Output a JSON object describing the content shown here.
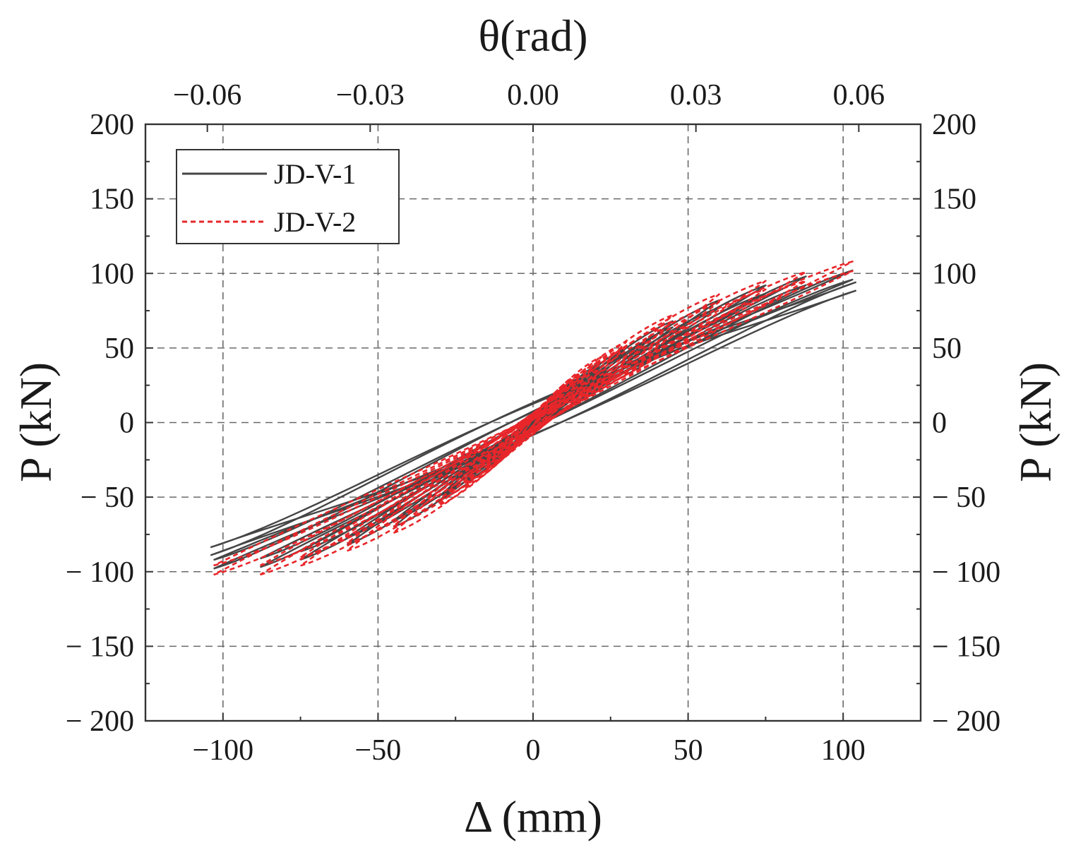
{
  "chart_data": {
    "type": "line",
    "xlabel": "Δ (mm)",
    "ylabel_left": "P (kN)",
    "ylabel_right": "P (kN)",
    "x2label": "θ(rad)",
    "xlim": [
      -125,
      125
    ],
    "ylim": [
      -200,
      200
    ],
    "x2lim": [
      -0.0714,
      0.0714
    ],
    "x_ticks": [
      -100,
      -50,
      0,
      50,
      100
    ],
    "x_tick_labels": [
      "−100",
      "−50",
      "0",
      "50",
      "100"
    ],
    "x2_ticks": [
      -0.06,
      -0.03,
      0.0,
      0.03,
      0.06
    ],
    "x2_tick_labels": [
      "−0.06",
      "−0.03",
      "0.00",
      "0.03",
      "0.06"
    ],
    "y_ticks": [
      200,
      150,
      100,
      50,
      0,
      -50,
      -100,
      -150,
      -200
    ],
    "y_tick_labels_left": [
      "200",
      "150",
      "100",
      "50",
      "0",
      "− 50",
      "− 100",
      "− 150",
      "− 200"
    ],
    "y_tick_labels_right": [
      "200",
      "150",
      "100",
      "50",
      "0",
      "− 50",
      "− 100",
      "− 150",
      "− 200"
    ],
    "grid": true,
    "legend_position": "top-left",
    "series": [
      {
        "name": "JD-V-1",
        "color": "#454545",
        "dash": "solid",
        "cycles": [
          {
            "amp": 5,
            "pPos": 12,
            "pNeg": -11,
            "r": 2
          },
          {
            "amp": 10,
            "pPos": 22,
            "pNeg": -20,
            "r": 4
          },
          {
            "amp": 15,
            "pPos": 30,
            "pNeg": -28,
            "r": 6
          },
          {
            "amp": 22,
            "pPos": 40,
            "pNeg": -40,
            "r": 9
          },
          {
            "amp": 30,
            "pPos": 50,
            "pNeg": -52,
            "r": 12
          },
          {
            "amp": 45,
            "pPos": 68,
            "pNeg": -70,
            "r": 17
          },
          {
            "amp": 60,
            "pPos": 82,
            "pNeg": -82,
            "r": 22
          },
          {
            "amp": 75,
            "pPos": 92,
            "pNeg": -92,
            "r": 26
          },
          {
            "amp": 88,
            "pPos": 98,
            "pNeg": -97,
            "r": 30
          },
          {
            "amp": 103,
            "pPos": 102,
            "pNeg": -98,
            "r": 33
          },
          {
            "amp": 104,
            "pPos": 94,
            "pNeg": -89,
            "r": 35
          }
        ]
      },
      {
        "name": "JD-V-2",
        "color": "#e8262a",
        "dash": "dashed",
        "cycles": [
          {
            "amp": 5,
            "pPos": 14,
            "pNeg": -13,
            "r": 2
          },
          {
            "amp": 10,
            "pPos": 24,
            "pNeg": -22,
            "r": 4
          },
          {
            "amp": 15,
            "pPos": 33,
            "pNeg": -31,
            "r": 6
          },
          {
            "amp": 22,
            "pPos": 44,
            "pNeg": -43,
            "r": 8
          },
          {
            "amp": 30,
            "pPos": 54,
            "pNeg": -55,
            "r": 11
          },
          {
            "amp": 45,
            "pPos": 72,
            "pNeg": -74,
            "r": 15
          },
          {
            "amp": 60,
            "pPos": 86,
            "pNeg": -86,
            "r": 19
          },
          {
            "amp": 75,
            "pPos": 95,
            "pNeg": -96,
            "r": 23
          },
          {
            "amp": 88,
            "pPos": 101,
            "pNeg": -102,
            "r": 26
          },
          {
            "amp": 103,
            "pPos": 108,
            "pNeg": -102,
            "r": 29
          }
        ]
      }
    ]
  }
}
